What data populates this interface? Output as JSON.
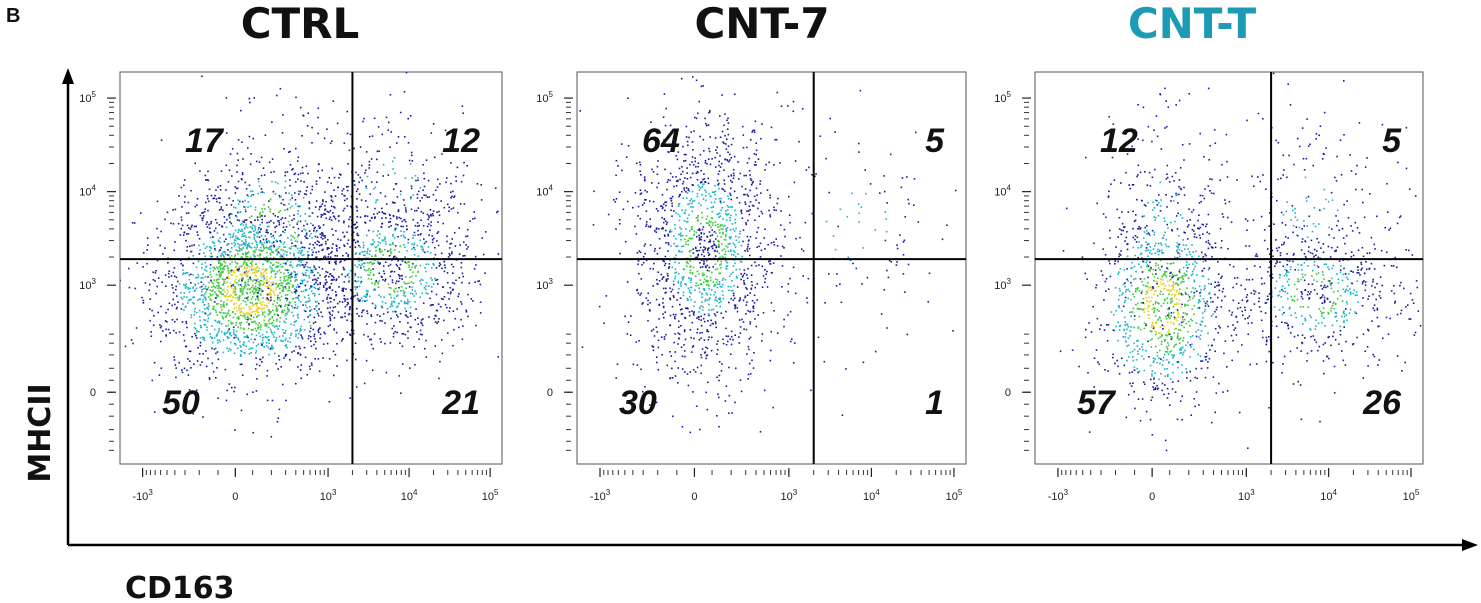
{
  "figure": {
    "panel_label": "B",
    "x_axis_label": "CD163",
    "y_axis_label": "MHCII"
  },
  "colors": {
    "density_low": "#1a1aa0",
    "density_mid": "#18b4c8",
    "density_high": "#3cc83c",
    "density_peak": "#e8d21e",
    "density_max": "#e03c1e",
    "title_default": "#111111",
    "title_cnt_t": "#1e9bb4",
    "gate_line": "#000000"
  },
  "chart_data": [
    {
      "type": "scatter",
      "title": "CTRL",
      "title_color": "#111111",
      "x_scale": "biexponential",
      "y_scale": "biexponential",
      "x_ticks": [
        "-10^3",
        "0",
        "10^3",
        "10^4",
        "10^5"
      ],
      "y_ticks": [
        "0",
        "10^3",
        "10^4",
        "10^5"
      ],
      "gate": {
        "x": 2000,
        "y": 1900
      },
      "quadrants": {
        "top_left": "17",
        "top_right": "12",
        "bottom_left": "50",
        "bottom_right": "21"
      },
      "populations": [
        {
          "x": 80,
          "y": 900,
          "count": 1900,
          "sx": 0.55,
          "sy": 0.45,
          "density": "high"
        },
        {
          "x": 200,
          "y": 4000,
          "count": 500,
          "sx": 0.55,
          "sy": 0.55,
          "density": "mid"
        },
        {
          "x": 6000,
          "y": 1500,
          "count": 900,
          "sx": 0.55,
          "sy": 0.45,
          "density": "mid"
        },
        {
          "x": 6000,
          "y": 12000,
          "count": 200,
          "sx": 0.6,
          "sy": 0.5,
          "density": "low"
        }
      ]
    },
    {
      "type": "scatter",
      "title": "CNT-7",
      "title_color": "#111111",
      "x_scale": "biexponential",
      "y_scale": "biexponential",
      "x_ticks": [
        "-10^3",
        "0",
        "10^3",
        "10^4",
        "10^5"
      ],
      "y_ticks": [
        "0",
        "10^3",
        "10^4",
        "10^5"
      ],
      "gate": {
        "x": 2000,
        "y": 1900
      },
      "quadrants": {
        "top_left": "64",
        "top_right": "5",
        "bottom_left": "30",
        "bottom_right": "1"
      },
      "populations": [
        {
          "x": 60,
          "y": 2500,
          "count": 1400,
          "sx": 0.45,
          "sy": 0.7,
          "density": "mid"
        },
        {
          "x": 6000,
          "y": 5000,
          "count": 110,
          "sx": 0.7,
          "sy": 0.7,
          "density": "low"
        }
      ]
    },
    {
      "type": "scatter",
      "title": "CNT-T",
      "title_color": "#1e9bb4",
      "x_scale": "biexponential",
      "y_scale": "biexponential",
      "x_ticks": [
        "-10^3",
        "0",
        "10^3",
        "10^4",
        "10^5"
      ],
      "y_ticks": [
        "0",
        "10^3",
        "10^4",
        "10^5"
      ],
      "gate": {
        "x": 2000,
        "y": 1900
      },
      "quadrants": {
        "top_left": "12",
        "top_right": "5",
        "bottom_left": "57",
        "bottom_right": "26"
      },
      "populations": [
        {
          "x": 60,
          "y": 600,
          "count": 900,
          "sx": 0.4,
          "sy": 0.5,
          "density": "high"
        },
        {
          "x": 60,
          "y": 5000,
          "count": 250,
          "sx": 0.4,
          "sy": 0.7,
          "density": "low"
        },
        {
          "x": 7000,
          "y": 800,
          "count": 550,
          "sx": 0.55,
          "sy": 0.4,
          "density": "mid"
        },
        {
          "x": 6000,
          "y": 7000,
          "count": 180,
          "sx": 0.6,
          "sy": 0.6,
          "density": "low"
        }
      ]
    }
  ]
}
